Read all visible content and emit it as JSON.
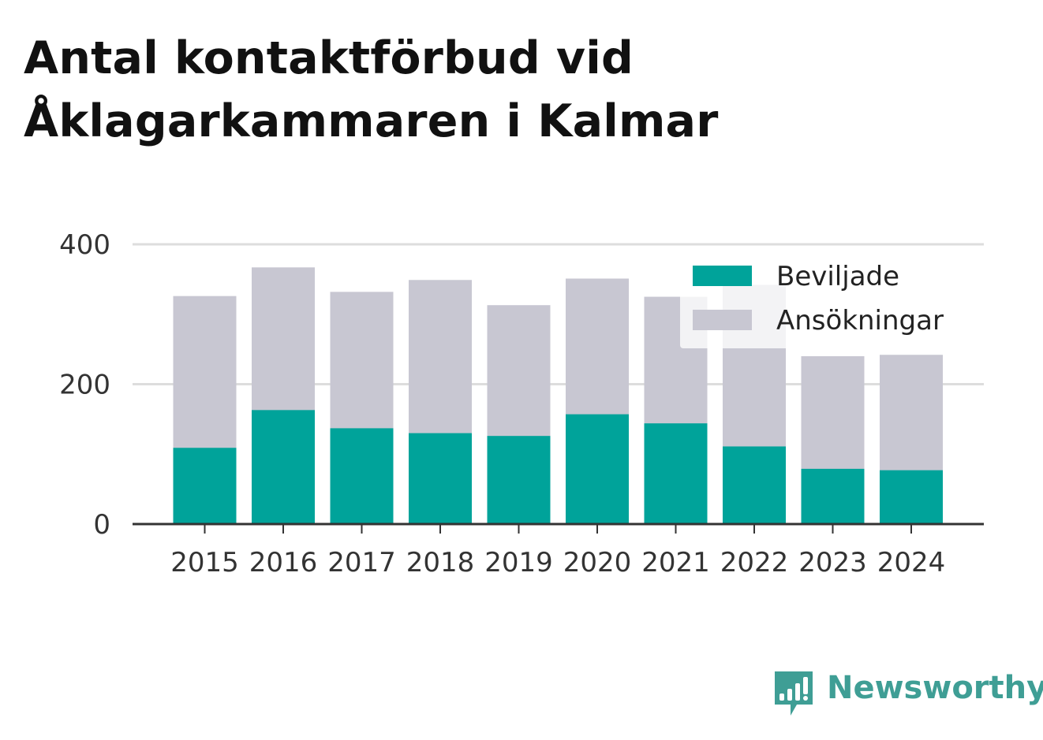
{
  "title": {
    "line1": "Antal kontaktförbud vid",
    "line2": "Åklagarkammaren i Kalmar"
  },
  "brand": {
    "name": "Newsworthy",
    "icon": "newsworthy-logo-icon",
    "color": "#3f9e95"
  },
  "chart_data": {
    "type": "bar",
    "stacked": false,
    "overlay": true,
    "categories": [
      "2015",
      "2016",
      "2017",
      "2018",
      "2019",
      "2020",
      "2021",
      "2022",
      "2023",
      "2024"
    ],
    "series": [
      {
        "name": "Beviljade",
        "color": "#00a39a",
        "values": [
          109,
          163,
          137,
          130,
          126,
          157,
          144,
          111,
          79,
          77
        ]
      },
      {
        "name": "Ansökningar",
        "color": "#c8c7d2",
        "values": [
          326,
          367,
          332,
          349,
          313,
          351,
          325,
          342,
          240,
          242
        ]
      }
    ],
    "ylim": [
      0,
      400
    ],
    "yticks": [
      0,
      200,
      400
    ],
    "grid": true,
    "legend": "top-right",
    "xlabel": "",
    "ylabel": ""
  }
}
